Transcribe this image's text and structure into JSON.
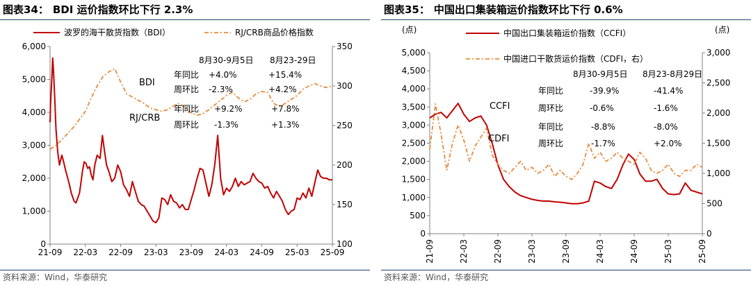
{
  "source_label": "资料来源：Wind，华泰研究",
  "left": {
    "chart_number": "图表34：",
    "chart_title": "BDI 运价指数环比下行 2.3%",
    "legend": [
      "波罗的海干散货指数（BDI）",
      "RJ/CRB商品价格指数"
    ],
    "tables": [
      {
        "header": [
          "8月30-9月5日",
          "8月23-29日"
        ],
        "rows": [
          [
            "年同比",
            "+4.0%",
            "+15.4%"
          ],
          [
            "周环比",
            "-2.3%",
            "+4.2%"
          ]
        ]
      },
      {
        "rows": [
          [
            "年同比",
            "+9.2%",
            "+7.8%"
          ],
          [
            "周环比",
            "-1.3%",
            "+1.3%"
          ]
        ]
      }
    ],
    "annotations": [
      "BDI",
      "RJ/CRB"
    ]
  },
  "right": {
    "chart_number": "图表35：",
    "chart_title": "中国出口集装箱运价指数环比下行 0.6%",
    "unit_left": "(点)",
    "unit_right": "(点)",
    "legend": [
      "中国出口集装箱运价指数（CCFI）",
      "中国进口干散货运价指数（CDFI，右）"
    ],
    "tables": [
      {
        "header": [
          "8月30-9月5日",
          "8月23-8月29日"
        ],
        "rows": [
          [
            "年同比",
            "-39.9%",
            "-41.4%"
          ],
          [
            "周环比",
            "-0.6%",
            "-1.6%"
          ]
        ]
      },
      {
        "rows": [
          [
            "年同比",
            "-8.8%",
            "-8.0%"
          ],
          [
            "周环比",
            "-1.7%",
            "+2.0%"
          ]
        ]
      }
    ],
    "annotations": [
      "CCFI",
      "CDFI"
    ]
  },
  "colors": {
    "primary": "#c00000",
    "secondary": "#e8893a",
    "rule": "#1b3b6f",
    "axis": "#808080"
  },
  "chart_data": [
    {
      "type": "line",
      "title": "BDI 运价指数环比下行 2.3%",
      "x_ticks": [
        "21-09",
        "22-03",
        "22-09",
        "23-03",
        "23-09",
        "24-03",
        "24-09",
        "25-03",
        "25-09"
      ],
      "y_left": {
        "ticks": [
          "0",
          "1,000",
          "2,000",
          "3,000",
          "4,000",
          "5,000",
          "6,000"
        ],
        "ylim": [
          0,
          6000
        ]
      },
      "y_right": {
        "ticks": [
          "100",
          "150",
          "200",
          "250",
          "300",
          "350"
        ],
        "ylim": [
          100,
          350
        ]
      },
      "series": [
        {
          "name": "波罗的海干散货指数（BDI）",
          "axis": "left",
          "style": "solid",
          "color": "#c00000",
          "x": [
            0,
            0.1,
            0.3,
            0.45,
            0.6,
            0.8,
            1.0,
            1.3,
            1.6,
            2.0,
            2.3,
            2.7,
            3.0,
            3.3,
            3.6,
            3.9,
            4.1,
            4.4,
            4.7,
            5.0,
            5.2,
            5.5,
            5.8,
            6.1,
            6.4,
            6.7,
            7.0,
            7.3,
            7.6,
            8.0,
            8.5,
            8.9,
            9.2,
            9.6,
            10.0,
            10.5,
            11.0,
            11.5,
            12.0,
            12.5,
            13.0,
            13.5,
            14.0,
            14.5,
            15.0,
            15.5,
            16.0,
            16.5,
            17.0,
            17.5,
            18.0,
            18.5,
            19.0,
            19.5,
            20.0,
            20.5,
            21.0,
            21.5,
            22.0,
            22.5,
            23.0,
            23.5,
            24.0,
            24.5,
            25.0,
            25.5,
            26.0,
            26.5,
            27.0,
            27.5,
            28.0,
            28.5,
            29.0,
            29.5,
            30.0,
            30.5,
            31.0,
            31.5,
            32.0,
            32.5,
            33.0,
            33.5,
            34.0,
            34.5,
            35.0,
            35.5,
            36.0,
            36.5,
            37.0,
            37.5,
            38.0,
            38.5,
            39.0,
            39.5,
            40.0,
            40.5,
            41.0,
            41.5,
            42.0,
            42.5,
            43.0,
            43.5,
            44.0,
            44.5,
            45.0,
            45.5,
            46.0,
            46.5,
            47.0,
            47.5,
            48.0
          ],
          "y": [
            3700,
            4300,
            5000,
            5650,
            5200,
            4400,
            3500,
            2800,
            2400,
            2700,
            2500,
            2200,
            2000,
            1800,
            1550,
            1400,
            1300,
            1250,
            1400,
            1550,
            1800,
            2200,
            2500,
            2450,
            2300,
            2350,
            2100,
            1950,
            2400,
            2700,
            2600,
            3300,
            2900,
            2400,
            2200,
            1900,
            2000,
            2400,
            2200,
            1800,
            1650,
            1450,
            1900,
            1600,
            1300,
            1200,
            1150,
            1000,
            850,
            700,
            650,
            800,
            1400,
            1350,
            1200,
            1500,
            1300,
            1250,
            1100,
            1200,
            1050,
            1050,
            1350,
            1650,
            2000,
            2300,
            2250,
            1850,
            1450,
            1800,
            2400,
            3300,
            2000,
            1500,
            1700,
            1600,
            1750,
            2000,
            1750,
            1900,
            1800,
            1850,
            1900,
            2150,
            2000,
            1900,
            1850,
            1700,
            1750,
            1550,
            1400,
            1600,
            1450,
            1300,
            1050,
            900,
            1000,
            1050,
            1400,
            1350,
            1550,
            1400,
            1700,
            1450,
            1850,
            2250,
            2050,
            2000,
            2000,
            1950,
            1950
          ]
        },
        {
          "name": "RJ/CRB商品价格指数",
          "axis": "right",
          "style": "dashdot",
          "color": "#e8893a",
          "x": [
            0,
            1,
            2,
            3,
            4,
            5,
            6,
            7,
            8,
            9,
            10,
            11,
            12,
            13,
            14,
            15,
            16,
            17,
            18,
            19,
            20,
            21,
            22,
            23,
            24,
            25,
            26,
            27,
            28,
            29,
            30,
            31,
            32,
            33,
            34,
            35,
            36,
            37,
            38,
            39,
            40,
            41,
            42,
            43,
            44,
            45,
            46,
            47,
            48
          ],
          "y": [
            220,
            225,
            232,
            240,
            248,
            258,
            268,
            285,
            300,
            312,
            318,
            322,
            305,
            290,
            286,
            282,
            278,
            272,
            270,
            268,
            270,
            275,
            278,
            272,
            266,
            263,
            265,
            270,
            276,
            282,
            288,
            292,
            285,
            280,
            283,
            290,
            293,
            292,
            278,
            274,
            278,
            283,
            288,
            296,
            300,
            303,
            300,
            298,
            300
          ]
        }
      ]
    },
    {
      "type": "line",
      "title": "中国出口集装箱运价指数环比下行 0.6%",
      "x_ticks": [
        "21-09",
        "22-03",
        "22-09",
        "23-03",
        "23-09",
        "24-03",
        "24-09",
        "25-03",
        "25-09"
      ],
      "y_left": {
        "ticks": [
          "0",
          "500",
          "1,000",
          "1,500",
          "2,000",
          "2,500",
          "3,000",
          "3,500",
          "4,000",
          "4,500",
          "5,000"
        ],
        "ylim": [
          0,
          5000
        ]
      },
      "y_right": {
        "ticks": [
          "0",
          "500",
          "1,000",
          "1,500",
          "2,000",
          "2,500",
          "3,000"
        ],
        "ylim": [
          0,
          3000
        ]
      },
      "series": [
        {
          "name": "中国出口集装箱运价指数（CCFI）",
          "axis": "left",
          "style": "solid",
          "color": "#c00000",
          "x": [
            0,
            1,
            2,
            3,
            4,
            5,
            6,
            7,
            8,
            9,
            10,
            11,
            12,
            13,
            14,
            15,
            16,
            17,
            18,
            19,
            20,
            21,
            22,
            23,
            24,
            25,
            26,
            27,
            28,
            29,
            30,
            31,
            32,
            33,
            34,
            35,
            36,
            37,
            38,
            39,
            40,
            41,
            42,
            43,
            44,
            45,
            46,
            47,
            48
          ],
          "y": [
            3200,
            3300,
            3350,
            3200,
            3400,
            3600,
            3300,
            3100,
            3200,
            3250,
            3000,
            2500,
            1900,
            1500,
            1300,
            1150,
            1050,
            1000,
            950,
            920,
            900,
            900,
            880,
            870,
            850,
            830,
            830,
            850,
            900,
            1450,
            1400,
            1300,
            1250,
            1500,
            1900,
            2200,
            2050,
            1650,
            1450,
            1450,
            1500,
            1250,
            1100,
            1080,
            1100,
            1400,
            1200,
            1150,
            1100
          ]
        },
        {
          "name": "中国进口干散货运价指数（CDFI，右）",
          "axis": "right",
          "style": "dashdot",
          "color": "#e8893a",
          "x": [
            0,
            1,
            2,
            3,
            4,
            5,
            6,
            7,
            8,
            9,
            10,
            11,
            12,
            13,
            14,
            15,
            16,
            17,
            18,
            19,
            20,
            21,
            22,
            23,
            24,
            25,
            26,
            27,
            28,
            29,
            30,
            31,
            32,
            33,
            34,
            35,
            36,
            37,
            38,
            39,
            40,
            41,
            42,
            43,
            44,
            45,
            46,
            47,
            48
          ],
          "y": [
            1400,
            2150,
            1650,
            1050,
            1500,
            1800,
            1550,
            1200,
            1450,
            1600,
            1750,
            1300,
            1150,
            1050,
            1000,
            1100,
            1200,
            1050,
            1100,
            1000,
            1050,
            1150,
            950,
            1050,
            950,
            900,
            1000,
            1150,
            1500,
            1250,
            1350,
            1200,
            1250,
            1350,
            1250,
            1200,
            1150,
            1350,
            1250,
            1050,
            1000,
            1050,
            1150,
            1000,
            950,
            1050,
            1050,
            1150,
            1100
          ]
        }
      ]
    }
  ]
}
